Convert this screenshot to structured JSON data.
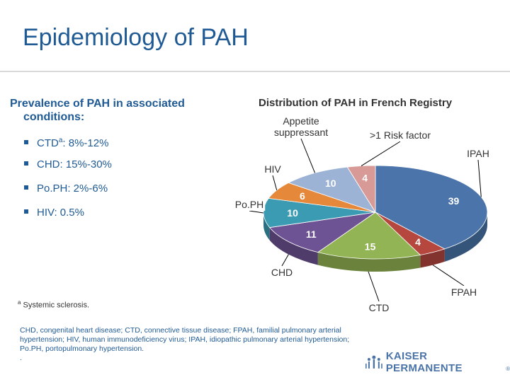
{
  "slide": {
    "title": "Epidemiology of PAH",
    "left_heading_line1": "Prevalence of PAH in associated",
    "left_heading_line2": "conditions:",
    "bullets": [
      {
        "prefix": "CTD",
        "sup": "a",
        "suffix": ": 8%-12%"
      },
      {
        "prefix": "CHD: 15%-30%",
        "sup": "",
        "suffix": ""
      },
      {
        "prefix": "Po.PH: 2%-6%",
        "sup": "",
        "suffix": ""
      },
      {
        "prefix": "HIV: 0.5%",
        "sup": "",
        "suffix": ""
      }
    ],
    "footnote_sup": "a",
    "footnote_text": " Systemic sclerosis.",
    "abbreviations": "CHD, congenital heart disease; CTD, connective tissue disease; FPAH, familial pulmonary arterial hypertension; HIV, human immunodeficiency virus; IPAH, idiopathic pulmonary arterial hypertension; Po.PH, portopulmonary hypertension.",
    "abbrev_dot": ".",
    "logo_text": "KAISER PERMANENTE",
    "logo_mark": "®"
  },
  "chart_data": {
    "type": "pie",
    "title": "Distribution of PAH in French Registry",
    "slices": [
      {
        "label": "IPAH",
        "value": 39,
        "color": "#4a74aa"
      },
      {
        "label": "FPAH",
        "value": 4,
        "color": "#b5473f"
      },
      {
        "label": "CTD",
        "value": 15,
        "color": "#93b454"
      },
      {
        "label": "CHD",
        "value": 11,
        "color": "#6e5394"
      },
      {
        "label": "Po.PH",
        "value": 10,
        "color": "#3b9bb3"
      },
      {
        "label": "HIV",
        "value": 6,
        "color": "#e5883a"
      },
      {
        "label": "Appetite suppressant",
        "value": 10,
        "color": "#9db3d6"
      },
      {
        "label": ">1 Risk factor",
        "value": 4,
        "color": "#d79a96"
      }
    ],
    "start_angle_deg": 0,
    "label_lines": {
      "Appetite suppressant": [
        "Appetite",
        "suppressant"
      ]
    }
  }
}
